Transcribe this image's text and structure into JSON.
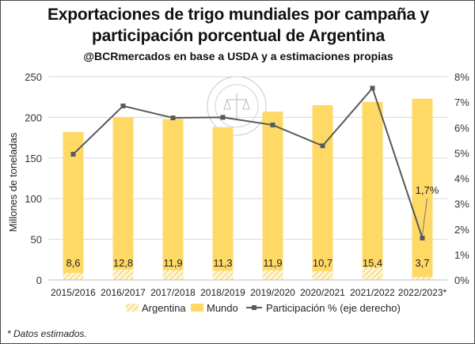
{
  "header": {
    "title_line1": "Exportaciones de trigo mundiales por campaña y",
    "title_line2": "participación porcentual de Argentina",
    "subtitle": "@BCRmercados en base a USDA y a estimaciones propias"
  },
  "footnote": "* Datos estimados.",
  "watermark_text": "BOLSA DE COMERCIO DE ROSARIO",
  "colors": {
    "mundo": "#FFD966",
    "argentina_hatch": "#F7E3A1",
    "line": "#595959",
    "grid": "#D9D9D9"
  },
  "chart_data": {
    "type": "bar",
    "title": "Exportaciones de trigo mundiales por campaña y participación porcentual de Argentina",
    "categories": [
      "2015/2016",
      "2016/2017",
      "2017/2018",
      "2018/2019",
      "2019/2020",
      "2020/2021",
      "2021/2022",
      "2022/2023*"
    ],
    "series": [
      {
        "name": "Argentina",
        "kind": "bar-hatched",
        "values": [
          8.6,
          12.8,
          11.9,
          11.3,
          11.9,
          10.7,
          15.4,
          3.7
        ],
        "labels": [
          "8,6",
          "12,8",
          "11,9",
          "11,3",
          "11,9",
          "10,7",
          "15,4",
          "3,7"
        ]
      },
      {
        "name": "Mundo",
        "kind": "bar",
        "values": [
          182,
          200,
          198,
          188,
          207,
          215,
          219,
          223
        ]
      },
      {
        "name": "Participación % (eje derecho)",
        "kind": "line",
        "axis": "right",
        "values": [
          4.95,
          6.85,
          6.38,
          6.4,
          6.1,
          5.28,
          7.55,
          1.65
        ]
      }
    ],
    "annotation": {
      "category": "2022/2023*",
      "text": "1,7%"
    },
    "ylabel": "Millones de toneladas",
    "ylim": [
      0,
      250
    ],
    "y_ticks": [
      "0",
      "50",
      "100",
      "150",
      "200",
      "250"
    ],
    "y2lim": [
      0,
      8
    ],
    "y2_ticks": [
      "0%",
      "1%",
      "2%",
      "3%",
      "4%",
      "5%",
      "6%",
      "7%",
      "8%"
    ],
    "grid": true,
    "legend_position": "bottom"
  }
}
